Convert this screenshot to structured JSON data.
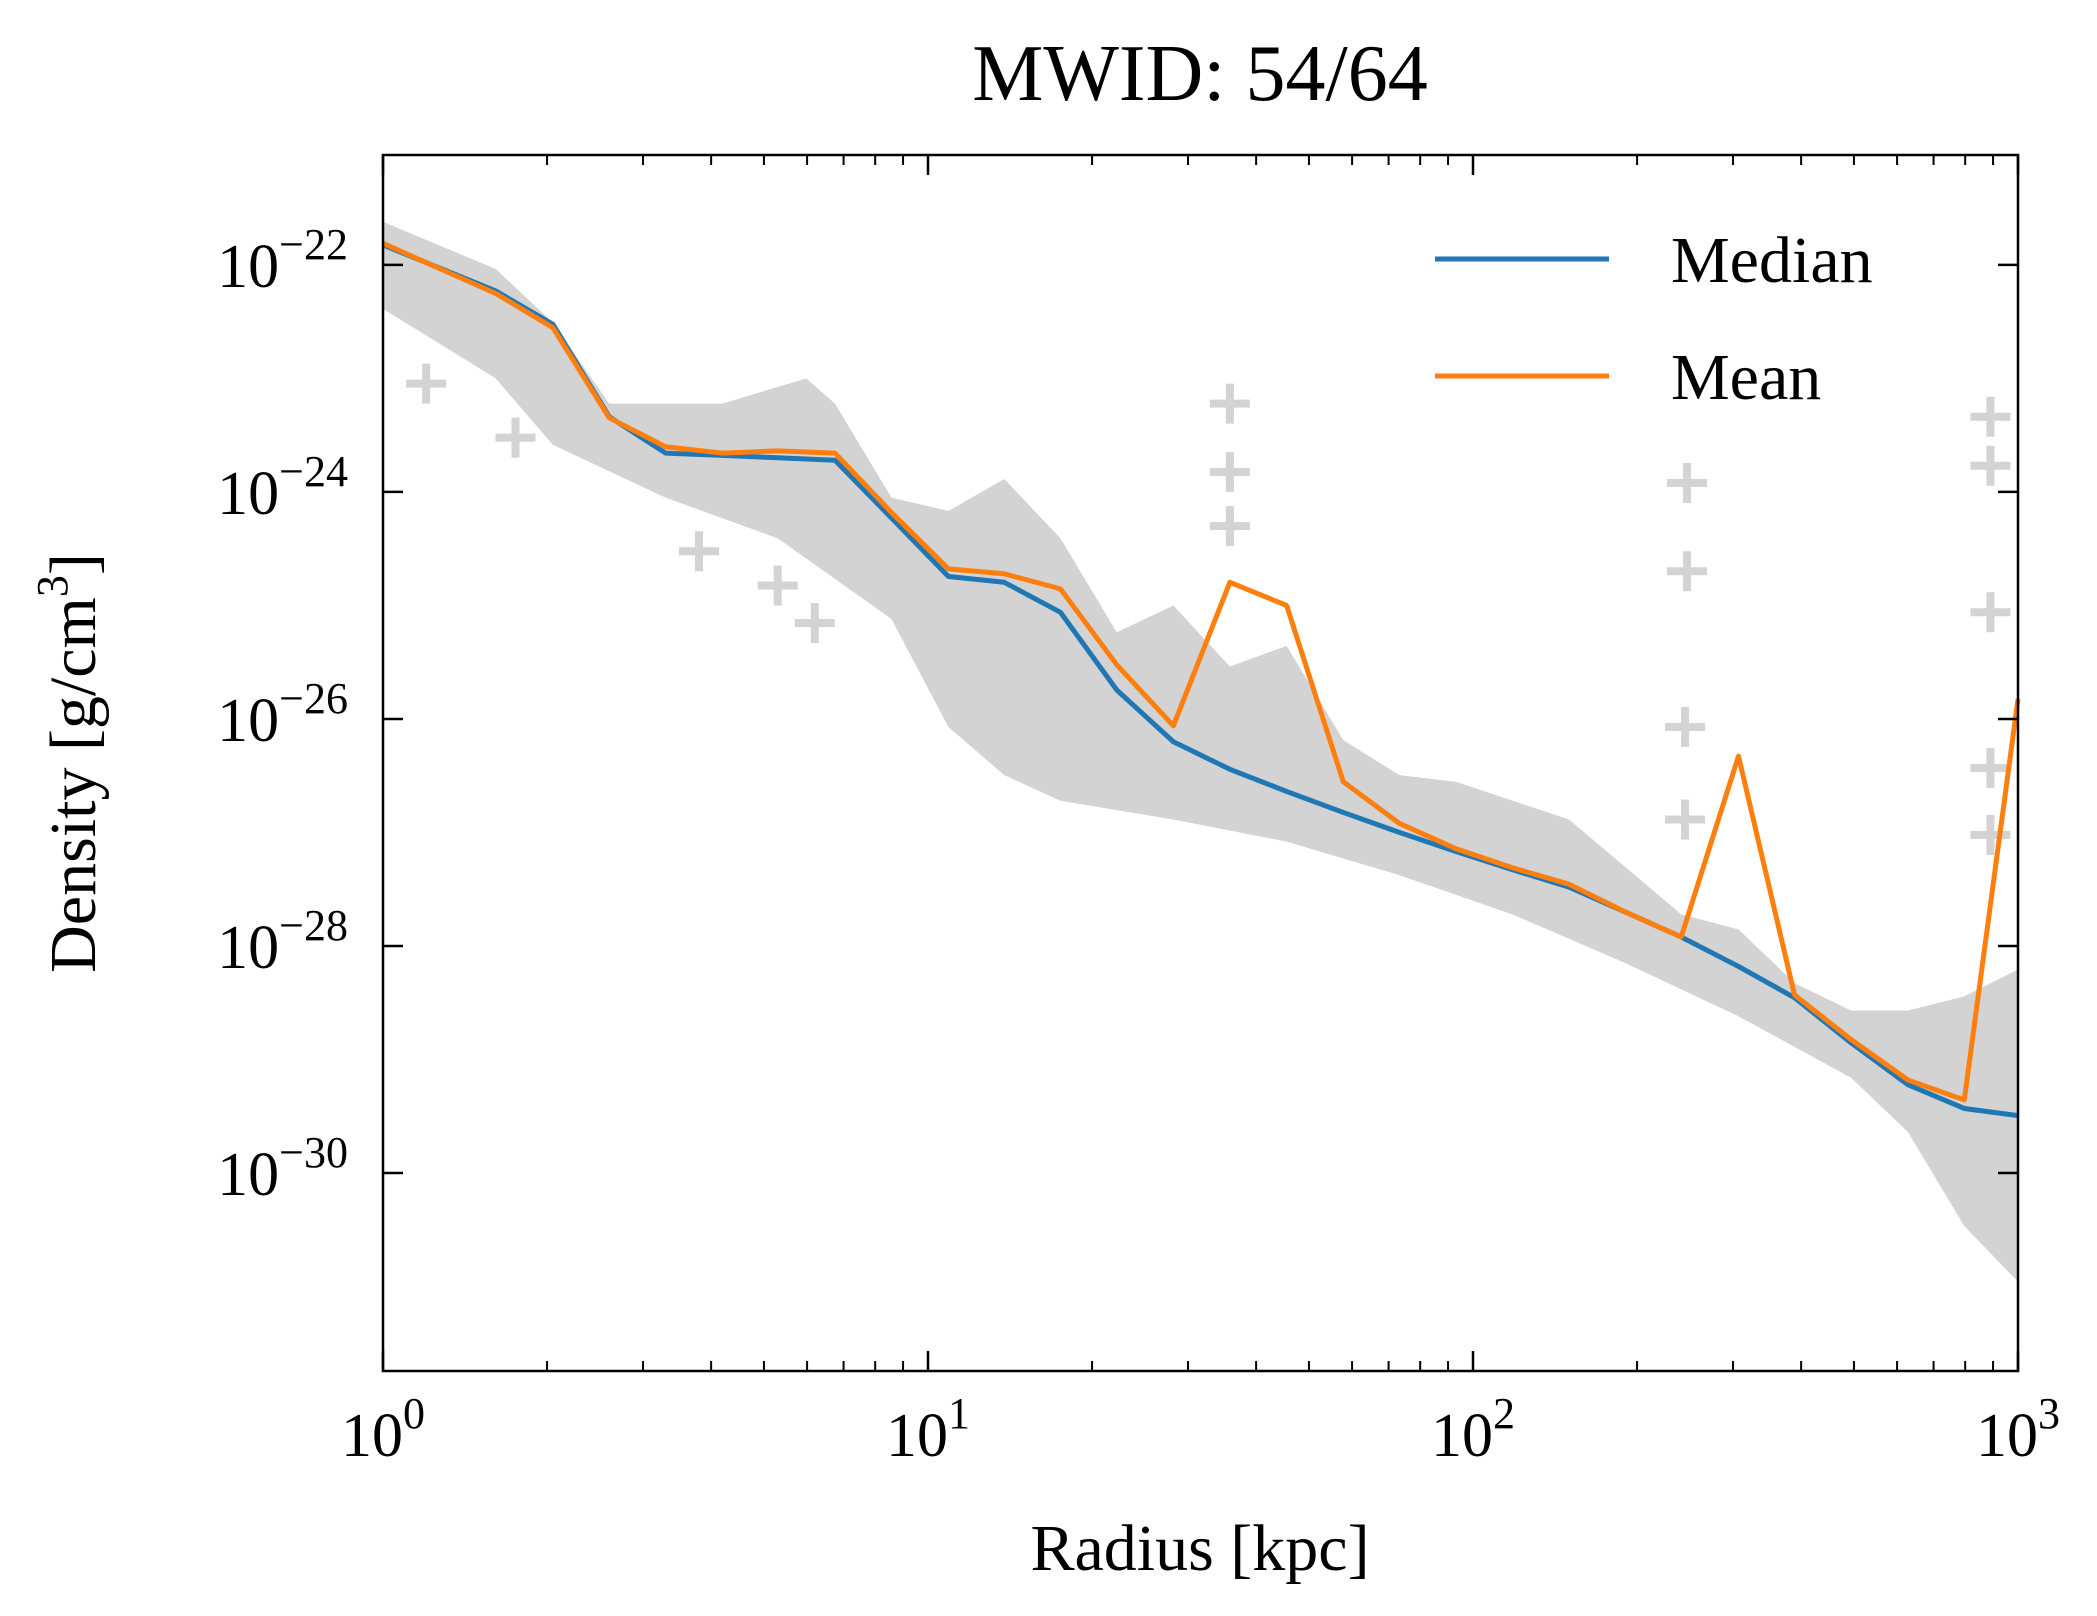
{
  "chart_data": {
    "type": "line",
    "title": "MWID: 54/64",
    "xlabel": "Radius [kpc]",
    "ylabel": "Density [g/cm",
    "ylabel_sup": "3",
    "ylabel_close": "]",
    "xscale": "log",
    "yscale": "log",
    "xlim": [
      1,
      1000
    ],
    "ylim": [
      1.8e-32,
      9.3e-22
    ],
    "grid": false,
    "legend_position": "top-right",
    "x_ticks": [
      {
        "base": "10",
        "exp": "0",
        "value": 1
      },
      {
        "base": "10",
        "exp": "1",
        "value": 10
      },
      {
        "base": "10",
        "exp": "2",
        "value": 100
      },
      {
        "base": "10",
        "exp": "3",
        "value": 1000
      }
    ],
    "y_ticks": [
      {
        "base": "10",
        "exp": "−22",
        "value": 1e-22
      },
      {
        "base": "10",
        "exp": "−24",
        "value": 1e-24
      },
      {
        "base": "10",
        "exp": "−26",
        "value": 1e-26
      },
      {
        "base": "10",
        "exp": "−28",
        "value": 1e-28
      },
      {
        "base": "10",
        "exp": "−30",
        "value": 1e-30
      }
    ],
    "x": [
      1,
      1.61,
      2.05,
      2.6,
      3.3,
      4.19,
      5.3,
      6.75,
      8.57,
      10.9,
      13.8,
      17.5,
      22.2,
      28.2,
      35.8,
      45.5,
      57.8,
      73.3,
      93,
      118,
      150,
      190,
      241,
      307,
      389,
      494,
      628,
      797,
      1000
    ],
    "series": [
      {
        "name": "Median",
        "color": "#1f77b4",
        "values": [
          1.5e-22,
          5.9e-23,
          3e-23,
          4.6e-24,
          2.2e-24,
          2.1e-24,
          2e-24,
          1.9e-24,
          5.9e-25,
          1.8e-25,
          1.6e-25,
          8.7e-26,
          1.8e-26,
          6.3e-27,
          3.6e-27,
          2.3e-27,
          1.5e-27,
          1e-27,
          6.8e-28,
          4.7e-28,
          3.3e-28,
          2e-28,
          1.2e-28,
          6.6e-29,
          3.5e-29,
          1.4e-29,
          6e-30,
          3.7e-30,
          3.2e-30
        ]
      },
      {
        "name": "Mean",
        "color": "#ff7f0e",
        "values": [
          1.55e-22,
          5.6e-23,
          2.8e-23,
          4.5e-24,
          2.5e-24,
          2.2e-24,
          2.3e-24,
          2.2e-24,
          6.6e-25,
          2.1e-25,
          1.9e-25,
          1.4e-25,
          3e-26,
          8.7e-27,
          1.6e-25,
          1e-25,
          2.8e-27,
          1.2e-27,
          7.2e-28,
          4.9e-28,
          3.5e-28,
          2e-28,
          1.2e-28,
          4.7e-27,
          3.7e-29,
          1.5e-29,
          6.6e-30,
          4.4e-30,
          1.5e-26
        ]
      }
    ],
    "scatter_band": {
      "color": "#d3d3d3",
      "upper": {
        "x": [
          1,
          1.61,
          2.05,
          2.6,
          4.19,
          5.98,
          6.75,
          8.57,
          10.9,
          13.8,
          17.5,
          22.2,
          28.2,
          35.8,
          45.5,
          57.8,
          73.3,
          93,
          150,
          241,
          307,
          389,
          494,
          628,
          797,
          1000
        ],
        "y": [
          2.4e-22,
          9.2e-23,
          3.1e-23,
          6e-24,
          6e-24,
          1e-23,
          6e-24,
          8.9e-25,
          6.8e-25,
          1.3e-24,
          3.9e-25,
          5.8e-26,
          1e-25,
          2.9e-26,
          4.4e-26,
          6.5e-27,
          3.2e-27,
          2.8e-27,
          1.3e-27,
          1.9e-28,
          1.4e-28,
          4.7e-29,
          2.7e-29,
          2.7e-29,
          3.6e-29,
          6.2e-29
        ]
      },
      "lower": {
        "x": [
          1,
          1.61,
          2.05,
          3.3,
          5.3,
          8.57,
          10.9,
          13.8,
          17.5,
          28.2,
          45.5,
          73.3,
          118,
          190,
          307,
          494,
          628,
          797,
          1000
        ],
        "y": [
          4.1e-23,
          1e-23,
          2.6e-24,
          8.9e-25,
          3.9e-25,
          7.6e-26,
          8.5e-27,
          3.2e-27,
          1.9e-27,
          1.3e-27,
          8.3e-28,
          4.2e-28,
          1.9e-28,
          7.1e-29,
          2.4e-29,
          6.9e-30,
          2.3e-30,
          3.4e-31,
          1.1e-31
        ]
      },
      "outliers": {
        "x": [
          1.2,
          1.75,
          3.8,
          5.3,
          6.2,
          35.8,
          35.8,
          35.8,
          247,
          247,
          245,
          245,
          890,
          890,
          890,
          890,
          890
        ],
        "y": [
          9e-24,
          3e-24,
          3e-25,
          1.5e-25,
          7e-26,
          6e-24,
          1.5e-24,
          5e-25,
          1.2e-24,
          2e-25,
          8.5e-27,
          1.3e-27,
          4.6e-24,
          1.7e-24,
          8.7e-26,
          3.7e-27,
          9.5e-28
        ]
      }
    }
  }
}
